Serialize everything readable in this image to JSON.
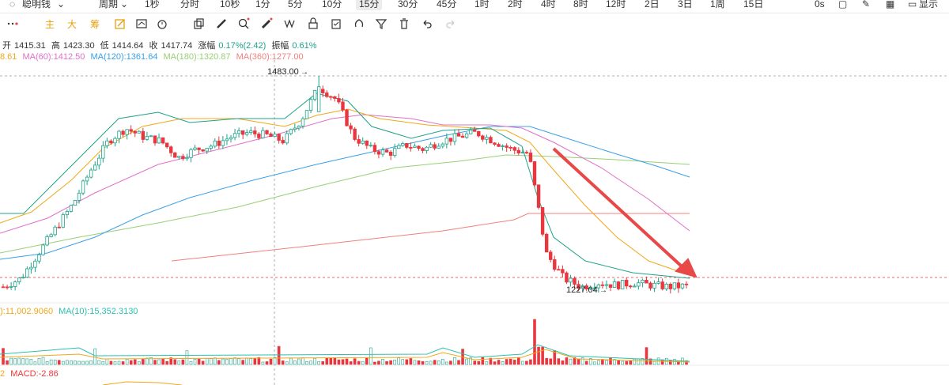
{
  "toolbar": {
    "left_items": [
      "聪明钱",
      "周期"
    ],
    "intervals": [
      "1秒",
      "分时",
      "10秒",
      "1分",
      "5分",
      "10分",
      "15分",
      "30分",
      "45分",
      "1时",
      "2时",
      "4时",
      "8时",
      "12时",
      "2日",
      "3日",
      "1周",
      "15日"
    ],
    "selected_interval": "15分",
    "right_items": [
      "0s",
      "显示"
    ]
  },
  "indicator_buttons": [
    "主",
    "大",
    "筹"
  ],
  "ohlc_bar": {
    "open_label": "开",
    "open": "1415.31",
    "high_label": "高",
    "high": "1423.30",
    "low_label": "低",
    "low": "1414.64",
    "close_label": "收",
    "close": "1417.74",
    "change_label": "涨幅",
    "change": "0.17%(2.42)",
    "amp_label": "振幅",
    "amp": "0.61%"
  },
  "ma_bar": {
    "ma_first": "8.61",
    "ma60": "MA(60):1412.50",
    "ma120": "MA(120):1361.64",
    "ma180": "MA(180):1320.87",
    "ma360": "MA(360):1277.00"
  },
  "volume_bar": {
    "vol_ma5": "):11,002.9060",
    "vol_ma10": "MA(10):15,352.3130"
  },
  "macd_bar": {
    "first": "2",
    "macd": "MACD:-2.86"
  },
  "annotations": {
    "high_label": "1483.00",
    "low_label": "1227.04"
  },
  "colors": {
    "up": "#e8373e",
    "down": "#1fa38a",
    "ma_yellow": "#f0a818",
    "ma_blue": "#3aa0e8",
    "ma_green": "#98cf74",
    "ma_pink": "#e070c8",
    "ma_red": "#f0807e",
    "teal": "#2cc0b0",
    "arrow": "#e84848"
  },
  "chart_data": {
    "type": "candlestick",
    "high_marker": 1483.0,
    "low_marker": 1227.04,
    "approx_close_series": [
      1230,
      1240,
      1270,
      1300,
      1330,
      1370,
      1405,
      1420,
      1410,
      1405,
      1385,
      1395,
      1400,
      1410,
      1415,
      1412,
      1405,
      1430,
      1470,
      1455,
      1410,
      1395,
      1390,
      1400,
      1395,
      1405,
      1410,
      1415,
      1405,
      1395,
      1390,
      1270,
      1240,
      1230,
      1235,
      1232,
      1235,
      1232,
      1230,
      1231
    ]
  }
}
